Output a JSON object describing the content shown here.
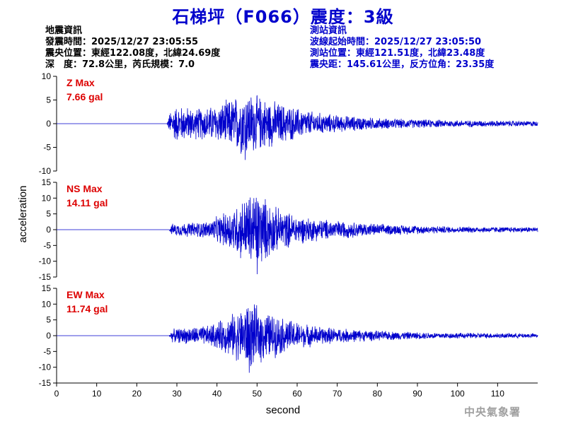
{
  "header": {
    "title": "石梯坪（F066）震度：3級"
  },
  "quake_info": {
    "heading": "地震資訊",
    "origin_time": "發震時間：2025/12/27 23:05:55",
    "epicenter": "震央位置：東經122.08度，北緯24.69度",
    "depth_magnitude": "深　度：72.8公里，芮氏規模：7.0"
  },
  "station_info": {
    "heading": "測站資訊",
    "wave_start": "波線起始時間：2025/12/27 23:05:50",
    "station_location": "測站位置：東經121.51度，北緯23.48度",
    "distance_azimuth": "震央距：145.61公里，反方位角：23.35度"
  },
  "footer": {
    "agency": "中央氣象署"
  },
  "colors": {
    "trace": "#0000cc",
    "title": "#0000cc",
    "max_label": "#dd0000",
    "axis": "#000000"
  },
  "chart_data": {
    "type": "line",
    "xlabel": "second",
    "ylabel": "acceleration",
    "xlim": [
      0,
      120
    ],
    "xticks": [
      0,
      10,
      20,
      30,
      40,
      50,
      60,
      70,
      80,
      90,
      100,
      110
    ],
    "panels": [
      {
        "component": "Z",
        "max_label": "Z Max",
        "max_value": "7.66 gal",
        "peak": 7.66,
        "ylim": [
          -10,
          10
        ],
        "yticks": [
          10,
          5,
          0,
          -5,
          -10
        ],
        "envelope": [
          [
            0,
            0
          ],
          [
            27.5,
            0
          ],
          [
            28.5,
            3.5
          ],
          [
            30,
            4.2
          ],
          [
            35,
            3.6
          ],
          [
            40,
            4.3
          ],
          [
            44,
            6.0
          ],
          [
            47,
            7.66
          ],
          [
            50,
            6.5
          ],
          [
            55,
            5.0
          ],
          [
            60,
            3.6
          ],
          [
            65,
            2.6
          ],
          [
            70,
            2.0
          ],
          [
            80,
            1.3
          ],
          [
            90,
            1.0
          ],
          [
            100,
            0.8
          ],
          [
            110,
            0.7
          ],
          [
            120,
            0.6
          ]
        ]
      },
      {
        "component": "NS",
        "max_label": "NS Max",
        "max_value": "14.11 gal",
        "peak": 14.11,
        "ylim": [
          -15,
          15
        ],
        "yticks": [
          15,
          10,
          5,
          0,
          -5,
          -10,
          -15
        ],
        "envelope": [
          [
            0,
            0
          ],
          [
            28,
            0
          ],
          [
            28.8,
            2.0
          ],
          [
            32,
            2.4
          ],
          [
            38,
            3.0
          ],
          [
            42,
            6.0
          ],
          [
            45,
            9.0
          ],
          [
            48,
            12.5
          ],
          [
            50,
            14.11
          ],
          [
            52,
            11.0
          ],
          [
            55,
            7.5
          ],
          [
            60,
            5.0
          ],
          [
            65,
            3.8
          ],
          [
            70,
            3.2
          ],
          [
            80,
            2.0
          ],
          [
            90,
            1.5
          ],
          [
            100,
            1.1
          ],
          [
            110,
            1.0
          ],
          [
            120,
            0.9
          ]
        ]
      },
      {
        "component": "EW",
        "max_label": "EW Max",
        "max_value": "11.74 gal",
        "peak": 11.74,
        "ylim": [
          -15,
          15
        ],
        "yticks": [
          15,
          10,
          5,
          0,
          -5,
          -10,
          -15
        ],
        "envelope": [
          [
            0,
            0
          ],
          [
            28,
            0
          ],
          [
            28.8,
            2.2
          ],
          [
            32,
            2.8
          ],
          [
            38,
            3.5
          ],
          [
            42,
            6.0
          ],
          [
            45,
            8.5
          ],
          [
            48,
            11.74
          ],
          [
            50,
            10.0
          ],
          [
            53,
            8.0
          ],
          [
            57,
            6.0
          ],
          [
            62,
            4.0
          ],
          [
            67,
            3.0
          ],
          [
            72,
            2.4
          ],
          [
            80,
            1.7
          ],
          [
            90,
            1.2
          ],
          [
            100,
            1.0
          ],
          [
            110,
            0.9
          ],
          [
            120,
            0.8
          ]
        ]
      }
    ]
  }
}
